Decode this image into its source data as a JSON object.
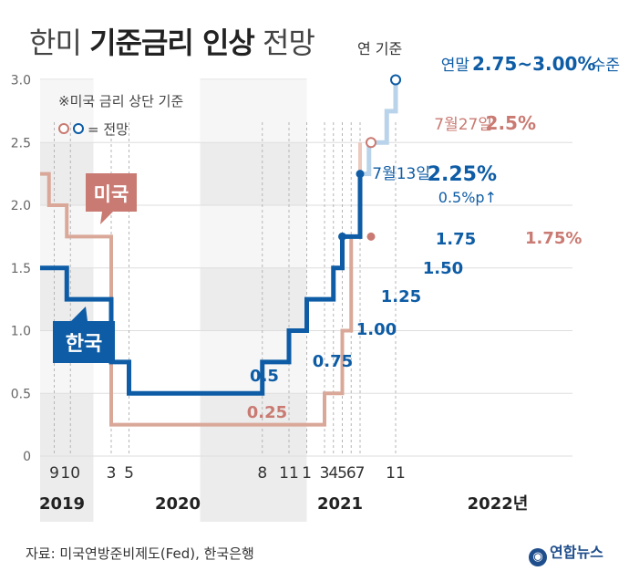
{
  "header": {
    "title_pre": "한미",
    "title_bold": "기준금리 인상",
    "title_post": "전망",
    "basis": "연 기준"
  },
  "footer": {
    "source": "자료: 미국연방준비제도(Fed), 한국은행",
    "logo": "연합뉴스"
  },
  "colors": {
    "korea": "#0d5ca5",
    "korea_forecast": "#b9d3ea",
    "us": "#d9a899",
    "us_label": "#c97a72",
    "band": "#ececec"
  },
  "chart_data": {
    "type": "line",
    "title": "한미 기준금리 인상 전망",
    "ylim": [
      0,
      3.0
    ],
    "yticks": [
      "0",
      "0.5",
      "1.0",
      "1.5",
      "2.0",
      "2.5",
      "3.0"
    ],
    "month_ticks": [
      "9",
      "10",
      "3",
      "5",
      "8",
      "11",
      "1",
      "3",
      "4",
      "5",
      "6",
      "7",
      "11"
    ],
    "year_labels": [
      "2019",
      "2020",
      "2021",
      "2022년"
    ],
    "notes": {
      "basis": "※미국 금리 상단 기준",
      "forecast": "= 전망"
    },
    "series": [
      {
        "name": "한국",
        "steps": [
          {
            "date": "2019-07",
            "rate": 1.5
          },
          {
            "date": "2019-10",
            "rate": 1.25
          },
          {
            "date": "2020-03",
            "rate": 0.75
          },
          {
            "date": "2020-05",
            "rate": 0.5
          },
          {
            "date": "2021-08",
            "rate": 0.75
          },
          {
            "date": "2021-11",
            "rate": 1.0
          },
          {
            "date": "2022-01",
            "rate": 1.25
          },
          {
            "date": "2022-04",
            "rate": 1.5
          },
          {
            "date": "2022-05",
            "rate": 1.75
          },
          {
            "date": "2022-07",
            "rate": 2.25
          }
        ],
        "forecast_steps": [
          {
            "date": "2022-07",
            "rate": 2.25
          },
          {
            "date": "2022-08",
            "rate": 2.5
          },
          {
            "date": "2022-10",
            "rate": 2.75
          },
          {
            "date": "2022-11",
            "rate": 3.0
          }
        ]
      },
      {
        "name": "미국",
        "steps": [
          {
            "date": "2019-07",
            "rate": 2.25
          },
          {
            "date": "2019-08",
            "rate": 2.0
          },
          {
            "date": "2019-10",
            "rate": 1.75
          },
          {
            "date": "2020-03",
            "rate": 0.25
          },
          {
            "date": "2022-03",
            "rate": 0.5
          },
          {
            "date": "2022-05",
            "rate": 1.0
          },
          {
            "date": "2022-06",
            "rate": 1.75
          }
        ],
        "forecast_steps": [
          {
            "date": "2022-06",
            "rate": 1.75
          },
          {
            "date": "2022-07",
            "rate": 2.5
          }
        ]
      }
    ],
    "annotations": {
      "korea_steps": [
        "0.5",
        "0.75",
        "1.00",
        "1.25",
        "1.50",
        "1.75"
      ],
      "us_steps": [
        "0.25",
        "1.75%"
      ],
      "korea_jul_date": "7월13일",
      "korea_jul_rate": "2.25%",
      "korea_jul_change": "0.5%p↑",
      "us_jul_date": "7월27일",
      "us_jul_rate": "2.5%",
      "korea_end_prefix": "연말",
      "korea_end_rate": "2.75~3.00%",
      "korea_end_suffix": "수준"
    }
  }
}
